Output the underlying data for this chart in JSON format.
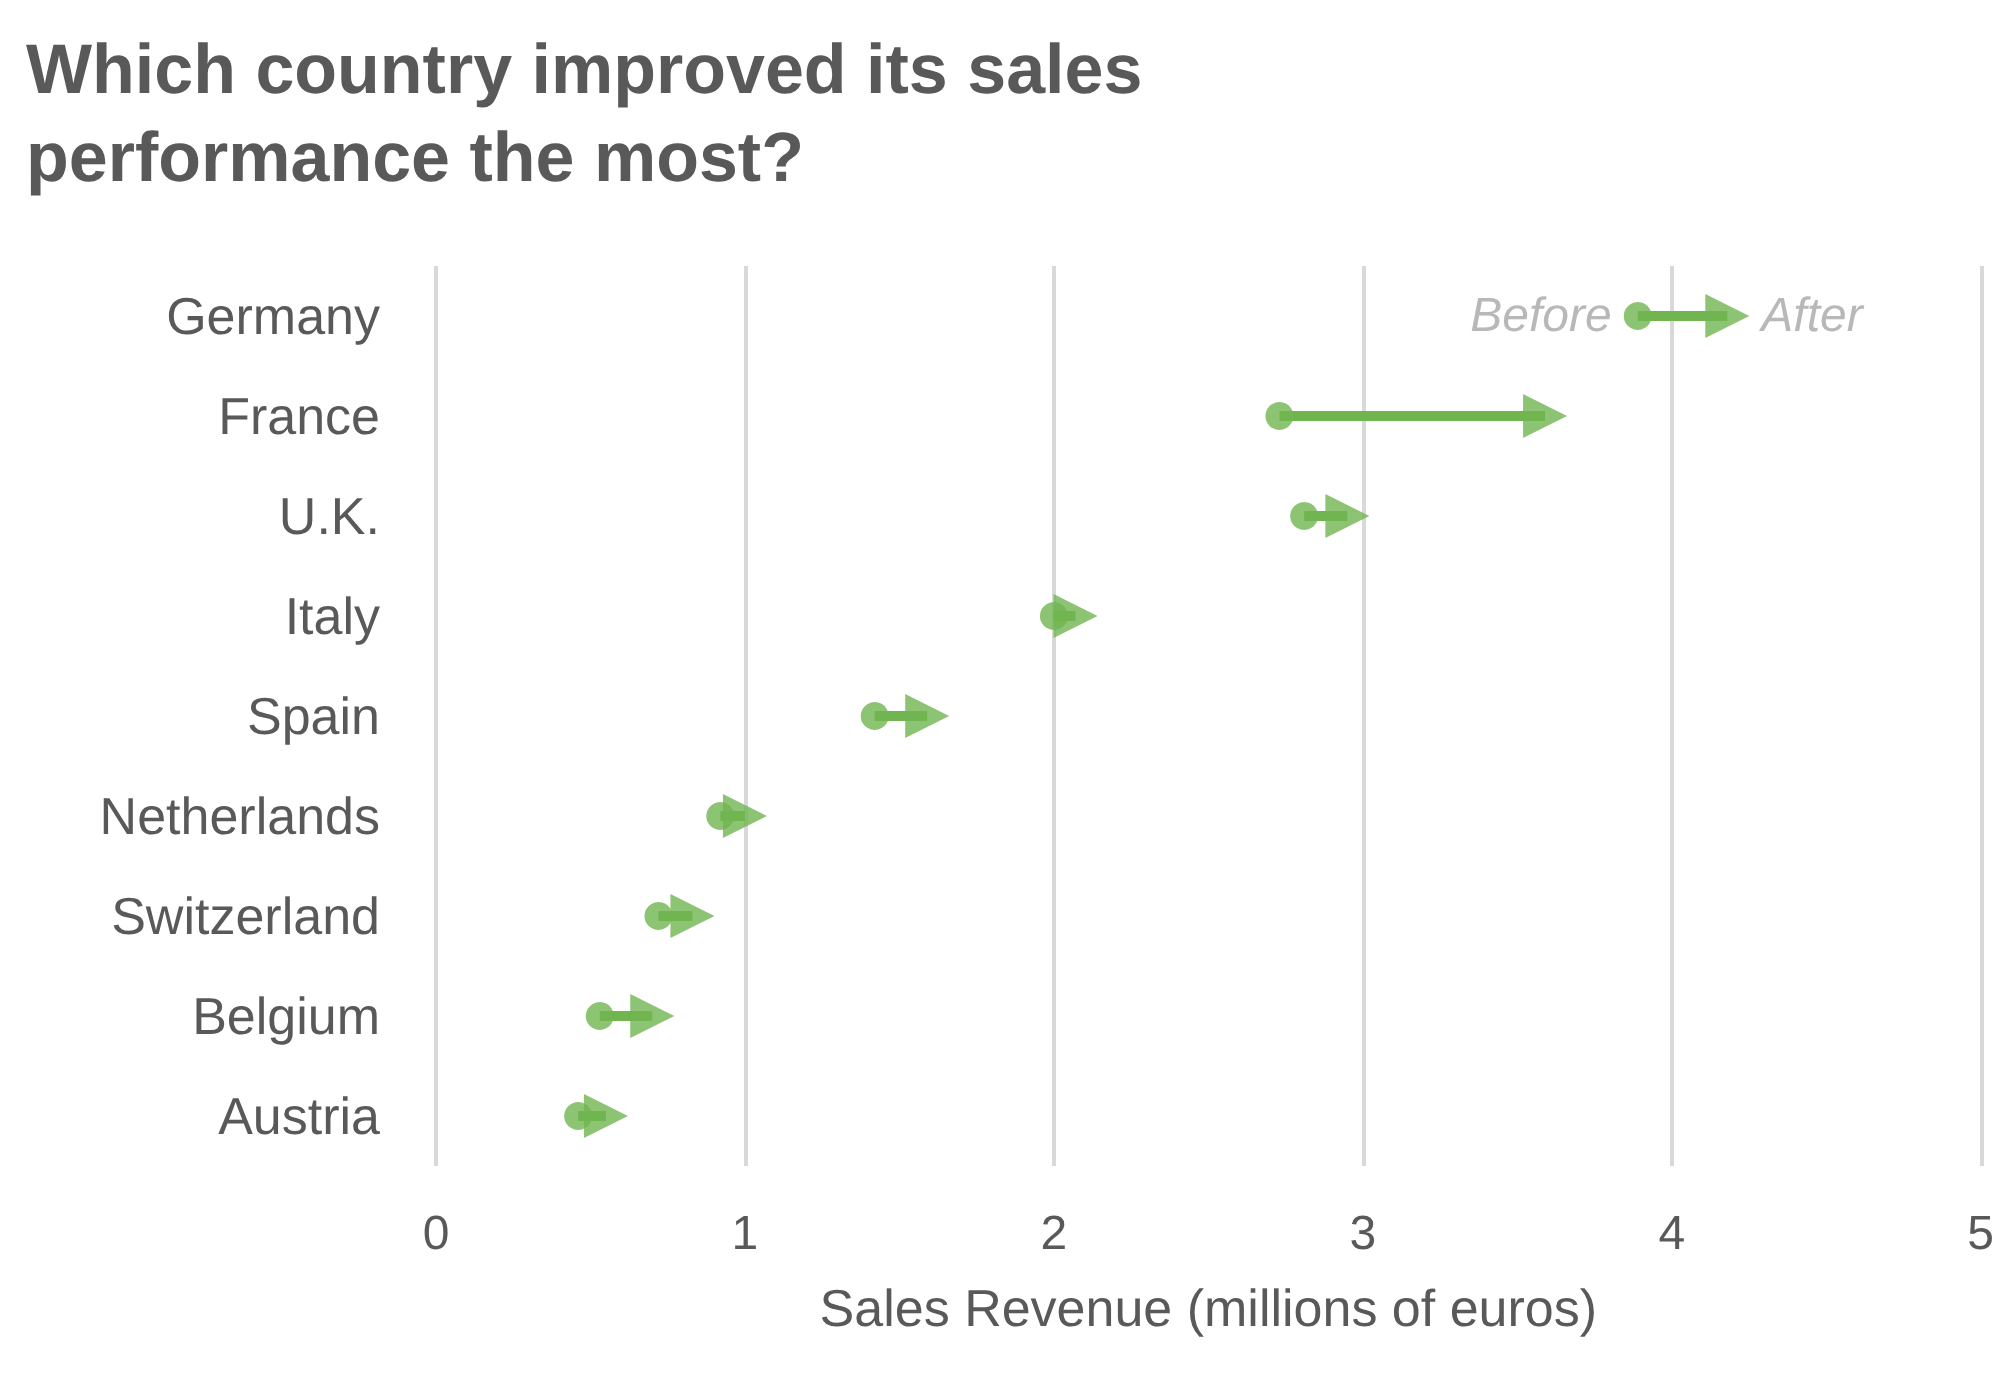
{
  "chart_data": {
    "type": "scatter",
    "title": "Which country improved its sales performance the most?",
    "xlabel": "Sales Revenue (millions of euros)",
    "orientation": "horizontal",
    "categories": [
      "Germany",
      "France",
      "U.K.",
      "Italy",
      "Spain",
      "Netherlands",
      "Switzerland",
      "Belgium",
      "Austria"
    ],
    "xlim": [
      0,
      5
    ],
    "xticks": [
      0,
      1,
      2,
      3,
      4,
      5
    ],
    "grid": "x",
    "legend": false,
    "series": [
      {
        "name": "Before",
        "color": "#70b550",
        "marker": "circle",
        "values": [
          3.89,
          2.73,
          2.81,
          2.0,
          1.42,
          0.92,
          0.72,
          0.53,
          0.46
        ]
      },
      {
        "name": "After",
        "color": "#70b550",
        "marker": "triangle",
        "values": [
          4.18,
          3.59,
          2.95,
          2.07,
          1.59,
          1.0,
          0.83,
          0.7,
          0.55
        ]
      }
    ]
  }
}
